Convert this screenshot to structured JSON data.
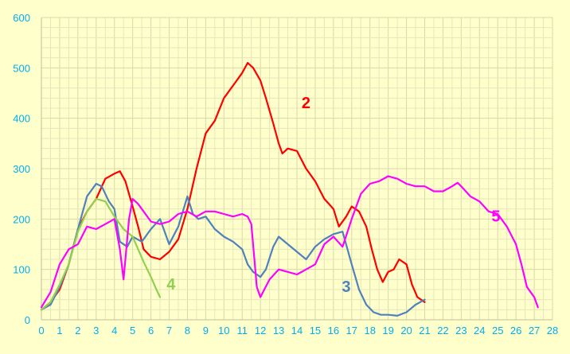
{
  "chart_data": {
    "type": "line",
    "title": "",
    "xlabel": "",
    "ylabel": "",
    "xlim": [
      0,
      28
    ],
    "ylim": [
      0,
      600
    ],
    "x_ticks": [
      "0",
      "1",
      "2",
      "3",
      "4",
      "5",
      "6",
      "7",
      "8",
      "9",
      "10",
      "11",
      "12",
      "13",
      "14",
      "15",
      "16",
      "17",
      "18",
      "19",
      "20",
      "21",
      "22",
      "23",
      "24",
      "25",
      "26",
      "27",
      "28"
    ],
    "y_ticks": [
      "0",
      "100",
      "200",
      "300",
      "400",
      "500",
      "600"
    ],
    "grid": true,
    "legend": "none",
    "series": [
      {
        "name": "2",
        "color": "#FF0000",
        "label_pos": [
          14.5,
          420
        ],
        "points": [
          [
            0,
            20
          ],
          [
            0.5,
            35
          ],
          [
            1,
            60
          ],
          [
            1.5,
            110
          ],
          [
            2,
            180
          ],
          [
            2.5,
            215
          ],
          [
            3,
            240
          ],
          [
            3.5,
            280
          ],
          [
            4,
            290
          ],
          [
            4.3,
            295
          ],
          [
            4.6,
            275
          ],
          [
            5,
            225
          ],
          [
            5.3,
            185
          ],
          [
            5.6,
            140
          ],
          [
            6,
            125
          ],
          [
            6.5,
            120
          ],
          [
            7,
            135
          ],
          [
            7.5,
            160
          ],
          [
            8,
            220
          ],
          [
            8.5,
            300
          ],
          [
            9,
            370
          ],
          [
            9.5,
            395
          ],
          [
            10,
            440
          ],
          [
            10.5,
            465
          ],
          [
            11,
            490
          ],
          [
            11.3,
            510
          ],
          [
            11.6,
            500
          ],
          [
            12,
            475
          ],
          [
            12.3,
            440
          ],
          [
            12.7,
            390
          ],
          [
            13,
            350
          ],
          [
            13.2,
            330
          ],
          [
            13.5,
            340
          ],
          [
            14,
            335
          ],
          [
            14.5,
            300
          ],
          [
            15,
            275
          ],
          [
            15.5,
            240
          ],
          [
            16,
            220
          ],
          [
            16.3,
            185
          ],
          [
            16.7,
            205
          ],
          [
            17,
            225
          ],
          [
            17.4,
            215
          ],
          [
            17.8,
            185
          ],
          [
            18.1,
            140
          ],
          [
            18.4,
            100
          ],
          [
            18.7,
            75
          ],
          [
            19,
            95
          ],
          [
            19.3,
            100
          ],
          [
            19.6,
            120
          ],
          [
            20,
            110
          ],
          [
            20.3,
            70
          ],
          [
            20.6,
            45
          ],
          [
            21,
            35
          ]
        ]
      },
      {
        "name": "3",
        "color": "#4F81BD",
        "label_pos": [
          16.7,
          55
        ],
        "points": [
          [
            0,
            20
          ],
          [
            0.5,
            30
          ],
          [
            1,
            65
          ],
          [
            1.5,
            110
          ],
          [
            2,
            180
          ],
          [
            2.5,
            245
          ],
          [
            3,
            270
          ],
          [
            3.3,
            265
          ],
          [
            3.7,
            235
          ],
          [
            4,
            220
          ],
          [
            4.3,
            155
          ],
          [
            4.7,
            145
          ],
          [
            5,
            165
          ],
          [
            5.5,
            155
          ],
          [
            6,
            180
          ],
          [
            6.5,
            200
          ],
          [
            7,
            150
          ],
          [
            7.5,
            185
          ],
          [
            8,
            245
          ],
          [
            8.3,
            210
          ],
          [
            8.6,
            200
          ],
          [
            9,
            205
          ],
          [
            9.5,
            180
          ],
          [
            10,
            165
          ],
          [
            10.5,
            155
          ],
          [
            11,
            140
          ],
          [
            11.3,
            110
          ],
          [
            11.6,
            95
          ],
          [
            12,
            85
          ],
          [
            12.3,
            100
          ],
          [
            12.7,
            145
          ],
          [
            13,
            165
          ],
          [
            13.5,
            150
          ],
          [
            14,
            135
          ],
          [
            14.5,
            120
          ],
          [
            15,
            145
          ],
          [
            15.5,
            160
          ],
          [
            16,
            170
          ],
          [
            16.5,
            175
          ],
          [
            17,
            110
          ],
          [
            17.4,
            60
          ],
          [
            17.8,
            30
          ],
          [
            18.2,
            15
          ],
          [
            18.6,
            10
          ],
          [
            19,
            10
          ],
          [
            19.5,
            8
          ],
          [
            20,
            15
          ],
          [
            20.5,
            30
          ],
          [
            21,
            40
          ]
        ]
      },
      {
        "name": "4",
        "color": "#92D050",
        "label_pos": [
          7.1,
          60
        ],
        "points": [
          [
            0,
            20
          ],
          [
            0.5,
            35
          ],
          [
            1,
            70
          ],
          [
            1.5,
            110
          ],
          [
            2,
            175
          ],
          [
            2.5,
            215
          ],
          [
            3,
            240
          ],
          [
            3.5,
            235
          ],
          [
            4,
            205
          ],
          [
            4.5,
            180
          ],
          [
            5,
            165
          ],
          [
            5.3,
            140
          ],
          [
            5.6,
            115
          ],
          [
            6,
            85
          ],
          [
            6.3,
            60
          ],
          [
            6.5,
            45
          ]
        ]
      },
      {
        "name": "5",
        "color": "#FF00FF",
        "label_pos": [
          24.9,
          195
        ],
        "points": [
          [
            0,
            25
          ],
          [
            0.5,
            55
          ],
          [
            1,
            110
          ],
          [
            1.5,
            140
          ],
          [
            2,
            150
          ],
          [
            2.5,
            185
          ],
          [
            3,
            180
          ],
          [
            3.5,
            190
          ],
          [
            4,
            200
          ],
          [
            4.3,
            140
          ],
          [
            4.5,
            80
          ],
          [
            4.8,
            200
          ],
          [
            5,
            240
          ],
          [
            5.3,
            230
          ],
          [
            5.6,
            215
          ],
          [
            6,
            195
          ],
          [
            6.5,
            190
          ],
          [
            7,
            195
          ],
          [
            7.5,
            210
          ],
          [
            8,
            215
          ],
          [
            8.5,
            205
          ],
          [
            9,
            215
          ],
          [
            9.5,
            215
          ],
          [
            10,
            210
          ],
          [
            10.5,
            205
          ],
          [
            11,
            210
          ],
          [
            11.3,
            205
          ],
          [
            11.5,
            190
          ],
          [
            11.8,
            65
          ],
          [
            12,
            45
          ],
          [
            12.5,
            80
          ],
          [
            13,
            100
          ],
          [
            13.5,
            95
          ],
          [
            14,
            90
          ],
          [
            14.5,
            100
          ],
          [
            15,
            110
          ],
          [
            15.5,
            150
          ],
          [
            16,
            165
          ],
          [
            16.5,
            145
          ],
          [
            17,
            200
          ],
          [
            17.5,
            250
          ],
          [
            18,
            270
          ],
          [
            18.5,
            275
          ],
          [
            19,
            285
          ],
          [
            19.5,
            280
          ],
          [
            20,
            270
          ],
          [
            20.5,
            265
          ],
          [
            21,
            265
          ],
          [
            21.5,
            255
          ],
          [
            22,
            255
          ],
          [
            22.5,
            265
          ],
          [
            22.8,
            272
          ],
          [
            23,
            265
          ],
          [
            23.5,
            245
          ],
          [
            24,
            235
          ],
          [
            24.5,
            215
          ],
          [
            25,
            210
          ],
          [
            25.5,
            185
          ],
          [
            26,
            150
          ],
          [
            26.3,
            110
          ],
          [
            26.6,
            65
          ],
          [
            27,
            45
          ],
          [
            27.2,
            25
          ]
        ]
      }
    ]
  }
}
